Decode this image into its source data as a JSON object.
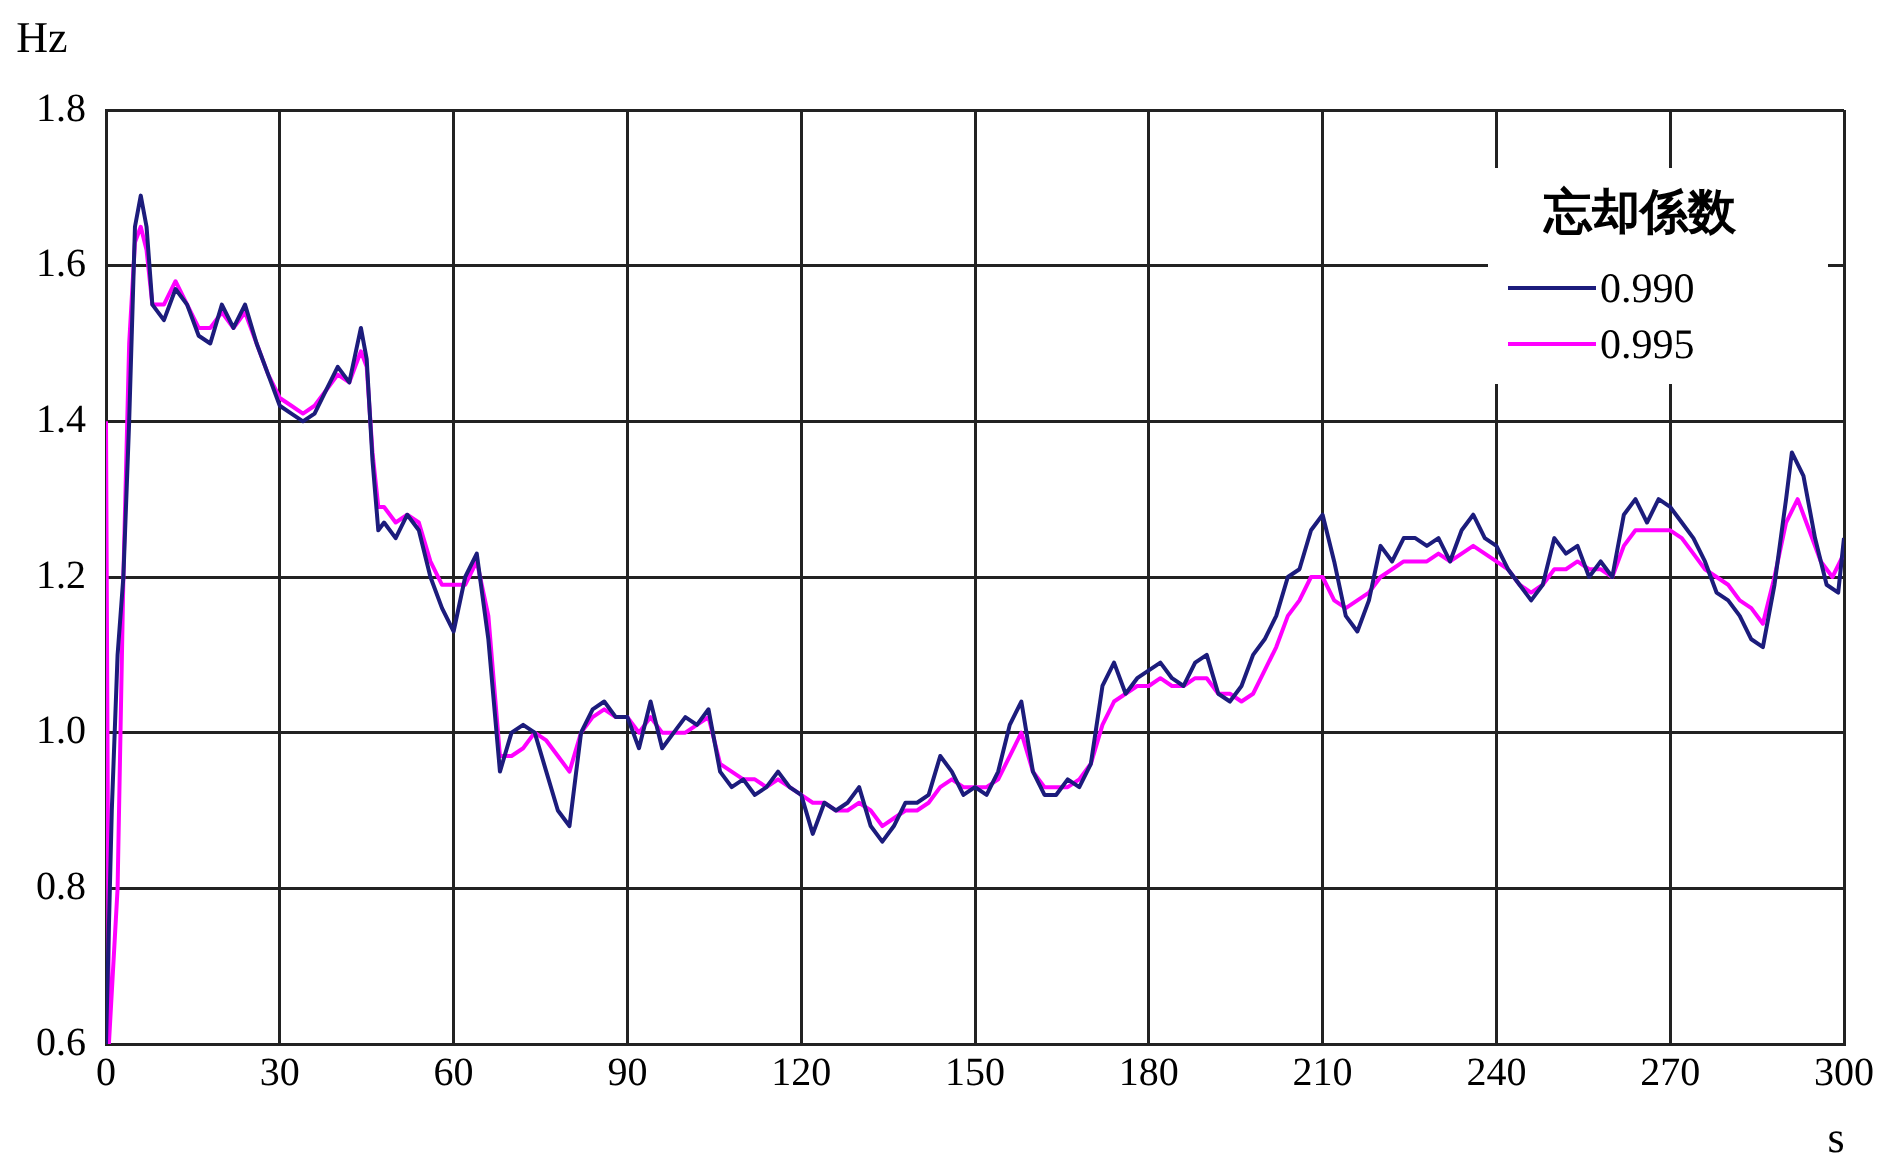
{
  "chart_data": {
    "type": "line",
    "xlabel": "s",
    "ylabel": "Hz",
    "legend_title": "忘却係数",
    "legend": "top right",
    "grid": true,
    "marker": "none",
    "line_style": "solid",
    "xlim": [
      0,
      300
    ],
    "xticks": [
      0,
      30,
      60,
      90,
      120,
      150,
      180,
      210,
      240,
      270,
      300
    ],
    "ylim": [
      0.6,
      1.8
    ],
    "yticks": [
      {
        "value": 0.6,
        "label": "0.6"
      },
      {
        "value": 0.8,
        "label": "0.8"
      },
      {
        "value": 1.0,
        "label": "1.0"
      },
      {
        "value": 1.2,
        "label": "1.2"
      },
      {
        "value": 1.4,
        "label": "1.4"
      },
      {
        "value": 1.6,
        "label": "1.6"
      },
      {
        "value": 1.8,
        "label": "1.8"
      }
    ],
    "series": [
      {
        "name": "0.990",
        "color": "#1c1c7c",
        "x": [
          0,
          1,
          2,
          3,
          4,
          5,
          6,
          7,
          8,
          10,
          12,
          14,
          16,
          18,
          20,
          22,
          24,
          26,
          28,
          30,
          32,
          34,
          36,
          38,
          40,
          42,
          44,
          45,
          46,
          47,
          48,
          50,
          52,
          54,
          56,
          58,
          60,
          62,
          64,
          66,
          68,
          70,
          72,
          74,
          76,
          78,
          80,
          82,
          84,
          86,
          88,
          90,
          92,
          94,
          96,
          98,
          100,
          102,
          104,
          106,
          108,
          110,
          112,
          114,
          116,
          118,
          120,
          122,
          124,
          126,
          128,
          130,
          132,
          134,
          136,
          138,
          140,
          142,
          144,
          146,
          148,
          150,
          152,
          154,
          156,
          158,
          160,
          162,
          164,
          166,
          168,
          170,
          172,
          174,
          176,
          178,
          180,
          182,
          184,
          186,
          188,
          190,
          192,
          194,
          196,
          198,
          200,
          202,
          204,
          206,
          208,
          210,
          212,
          214,
          216,
          218,
          220,
          222,
          224,
          226,
          228,
          230,
          232,
          234,
          236,
          238,
          240,
          242,
          244,
          246,
          248,
          250,
          252,
          254,
          256,
          258,
          260,
          262,
          264,
          266,
          268,
          270,
          272,
          274,
          276,
          278,
          280,
          282,
          284,
          286,
          288,
          290,
          291,
          293,
          295,
          297,
          299,
          300
        ],
        "values": [
          0.6,
          0.9,
          1.1,
          1.2,
          1.4,
          1.65,
          1.69,
          1.65,
          1.55,
          1.53,
          1.57,
          1.55,
          1.51,
          1.5,
          1.55,
          1.52,
          1.55,
          1.5,
          1.46,
          1.42,
          1.41,
          1.4,
          1.41,
          1.44,
          1.47,
          1.45,
          1.52,
          1.48,
          1.35,
          1.26,
          1.27,
          1.25,
          1.28,
          1.26,
          1.2,
          1.16,
          1.13,
          1.2,
          1.23,
          1.12,
          0.95,
          1.0,
          1.01,
          1.0,
          0.95,
          0.9,
          0.88,
          1.0,
          1.03,
          1.04,
          1.02,
          1.02,
          0.98,
          1.04,
          0.98,
          1.0,
          1.02,
          1.01,
          1.03,
          0.95,
          0.93,
          0.94,
          0.92,
          0.93,
          0.95,
          0.93,
          0.92,
          0.87,
          0.91,
          0.9,
          0.91,
          0.93,
          0.88,
          0.86,
          0.88,
          0.91,
          0.91,
          0.92,
          0.97,
          0.95,
          0.92,
          0.93,
          0.92,
          0.95,
          1.01,
          1.04,
          0.95,
          0.92,
          0.92,
          0.94,
          0.93,
          0.96,
          1.06,
          1.09,
          1.05,
          1.07,
          1.08,
          1.09,
          1.07,
          1.06,
          1.09,
          1.1,
          1.05,
          1.04,
          1.06,
          1.1,
          1.12,
          1.15,
          1.2,
          1.21,
          1.26,
          1.28,
          1.22,
          1.15,
          1.13,
          1.17,
          1.24,
          1.22,
          1.25,
          1.25,
          1.24,
          1.25,
          1.22,
          1.26,
          1.28,
          1.25,
          1.24,
          1.21,
          1.19,
          1.17,
          1.19,
          1.25,
          1.23,
          1.24,
          1.2,
          1.22,
          1.2,
          1.28,
          1.3,
          1.27,
          1.3,
          1.29,
          1.27,
          1.25,
          1.22,
          1.18,
          1.17,
          1.15,
          1.12,
          1.11,
          1.19,
          1.3,
          1.36,
          1.33,
          1.25,
          1.19,
          1.18,
          1.25
        ]
      },
      {
        "name": "0.995",
        "color": "#ff00ff",
        "x": [
          0,
          0.5,
          2,
          3,
          4,
          5,
          6,
          7,
          8,
          10,
          12,
          14,
          16,
          18,
          20,
          22,
          24,
          26,
          28,
          30,
          32,
          34,
          36,
          38,
          40,
          42,
          44,
          45,
          46,
          47,
          48,
          50,
          52,
          54,
          56,
          58,
          60,
          62,
          64,
          66,
          68,
          70,
          72,
          74,
          76,
          78,
          80,
          82,
          84,
          86,
          88,
          90,
          92,
          94,
          96,
          98,
          100,
          102,
          104,
          106,
          108,
          110,
          112,
          114,
          116,
          118,
          120,
          122,
          124,
          126,
          128,
          130,
          132,
          134,
          136,
          138,
          140,
          142,
          144,
          146,
          148,
          150,
          152,
          154,
          156,
          158,
          160,
          162,
          164,
          166,
          168,
          170,
          172,
          174,
          176,
          178,
          180,
          182,
          184,
          186,
          188,
          190,
          192,
          194,
          196,
          198,
          200,
          202,
          204,
          206,
          208,
          210,
          212,
          214,
          216,
          218,
          220,
          222,
          224,
          226,
          228,
          230,
          232,
          234,
          236,
          238,
          240,
          242,
          244,
          246,
          248,
          250,
          252,
          254,
          256,
          258,
          260,
          262,
          264,
          266,
          268,
          270,
          272,
          274,
          276,
          278,
          280,
          282,
          284,
          286,
          288,
          290,
          292,
          294,
          296,
          298,
          300
        ],
        "values": [
          1.4,
          0.6,
          0.8,
          1.2,
          1.5,
          1.63,
          1.65,
          1.62,
          1.55,
          1.55,
          1.58,
          1.55,
          1.52,
          1.52,
          1.54,
          1.52,
          1.54,
          1.5,
          1.46,
          1.43,
          1.42,
          1.41,
          1.42,
          1.44,
          1.46,
          1.45,
          1.49,
          1.47,
          1.36,
          1.29,
          1.29,
          1.27,
          1.28,
          1.27,
          1.22,
          1.19,
          1.19,
          1.19,
          1.22,
          1.15,
          0.97,
          0.97,
          0.98,
          1.0,
          0.99,
          0.97,
          0.95,
          1.0,
          1.02,
          1.03,
          1.02,
          1.02,
          1.0,
          1.02,
          1.0,
          1.0,
          1.0,
          1.01,
          1.02,
          0.96,
          0.95,
          0.94,
          0.94,
          0.93,
          0.94,
          0.93,
          0.92,
          0.91,
          0.91,
          0.9,
          0.9,
          0.91,
          0.9,
          0.88,
          0.89,
          0.9,
          0.9,
          0.91,
          0.93,
          0.94,
          0.93,
          0.93,
          0.93,
          0.94,
          0.97,
          1.0,
          0.95,
          0.93,
          0.93,
          0.93,
          0.94,
          0.96,
          1.01,
          1.04,
          1.05,
          1.06,
          1.06,
          1.07,
          1.06,
          1.06,
          1.07,
          1.07,
          1.05,
          1.05,
          1.04,
          1.05,
          1.08,
          1.11,
          1.15,
          1.17,
          1.2,
          1.2,
          1.17,
          1.16,
          1.17,
          1.18,
          1.2,
          1.21,
          1.22,
          1.22,
          1.22,
          1.23,
          1.22,
          1.23,
          1.24,
          1.23,
          1.22,
          1.21,
          1.19,
          1.18,
          1.19,
          1.21,
          1.21,
          1.22,
          1.21,
          1.21,
          1.2,
          1.24,
          1.26,
          1.26,
          1.26,
          1.26,
          1.25,
          1.23,
          1.21,
          1.2,
          1.19,
          1.17,
          1.16,
          1.14,
          1.2,
          1.27,
          1.3,
          1.26,
          1.22,
          1.2,
          1.23
        ]
      }
    ]
  }
}
